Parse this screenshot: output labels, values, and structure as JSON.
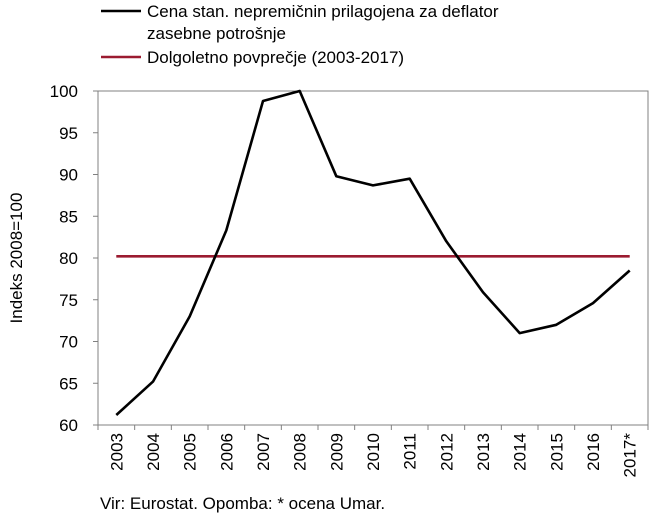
{
  "chart_data": {
    "type": "line",
    "categories": [
      "2003",
      "2004",
      "2005",
      "2006",
      "2007",
      "2008",
      "2009",
      "2010",
      "2011",
      "2012",
      "2013",
      "2014",
      "2015",
      "2016",
      "2017*"
    ],
    "series": [
      {
        "name": "Cena stan. nepremičnin prilagojena za deflator zasebne potrošnje",
        "legend_lines": [
          "Cena stan. nepremičnin prilagojena za deflator",
          "zasebne potrošnje"
        ],
        "color": "#000000",
        "values": [
          61.2,
          65.2,
          73.0,
          83.3,
          98.8,
          100.0,
          89.8,
          88.7,
          89.5,
          82.0,
          75.9,
          71.0,
          72.0,
          74.6,
          78.5
        ]
      },
      {
        "name": "Dolgoletno povprečje (2003-2017)",
        "legend_lines": [
          "Dolgoletno povprečje (2003-2017)"
        ],
        "color": "#9b1b30",
        "values": [
          80.2,
          80.2,
          80.2,
          80.2,
          80.2,
          80.2,
          80.2,
          80.2,
          80.2,
          80.2,
          80.2,
          80.2,
          80.2,
          80.2,
          80.2
        ]
      }
    ],
    "ylabel": "Indeks 2008=100",
    "xlabel": "",
    "ylim": [
      60,
      100
    ],
    "yticks": [
      60,
      65,
      70,
      75,
      80,
      85,
      90,
      95,
      100
    ],
    "grid": false,
    "legend_position": "top"
  },
  "footnote": "Vir: Eurostat. Opomba: * ocena Umar."
}
